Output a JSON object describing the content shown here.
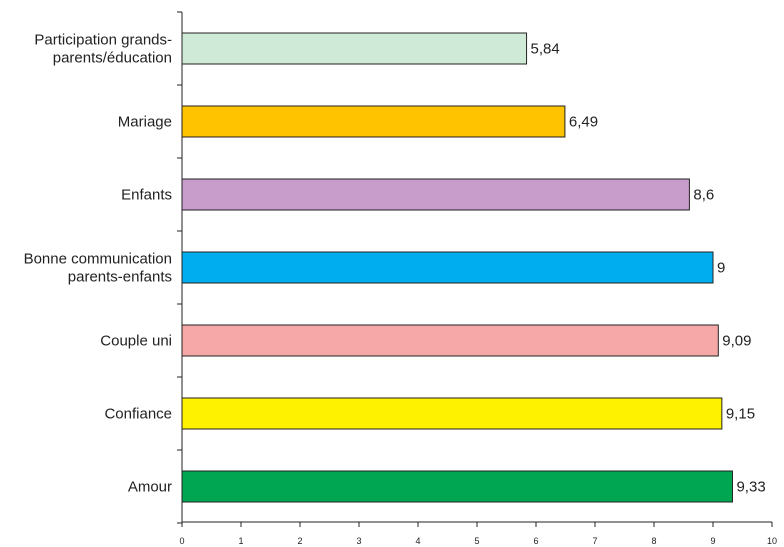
{
  "chart_data": {
    "type": "bar",
    "orientation": "horizontal",
    "categories": [
      [
        "Participation grands-",
        "parents/éducation"
      ],
      [
        "Mariage"
      ],
      [
        "Enfants"
      ],
      [
        "Bonne communication",
        "parents-enfants"
      ],
      [
        "Couple uni"
      ],
      [
        "Confiance"
      ],
      [
        "Amour"
      ]
    ],
    "values": [
      5.84,
      6.49,
      8.6,
      9,
      9.09,
      9.15,
      9.33
    ],
    "value_labels": [
      "5,84",
      "6,49",
      "8,6",
      "9",
      "9,09",
      "9,15",
      "9,33"
    ],
    "colors": [
      "#cfead7",
      "#ffc300",
      "#c89ccb",
      "#00aeef",
      "#f6a8a8",
      "#fff200",
      "#00a651"
    ],
    "xlim": [
      0,
      10
    ],
    "x_ticks": [
      "0",
      "1",
      "2",
      "3",
      "4",
      "5",
      "6",
      "7",
      "8",
      "9",
      "10"
    ],
    "grid": false,
    "title": "",
    "xlabel": "",
    "ylabel": ""
  }
}
